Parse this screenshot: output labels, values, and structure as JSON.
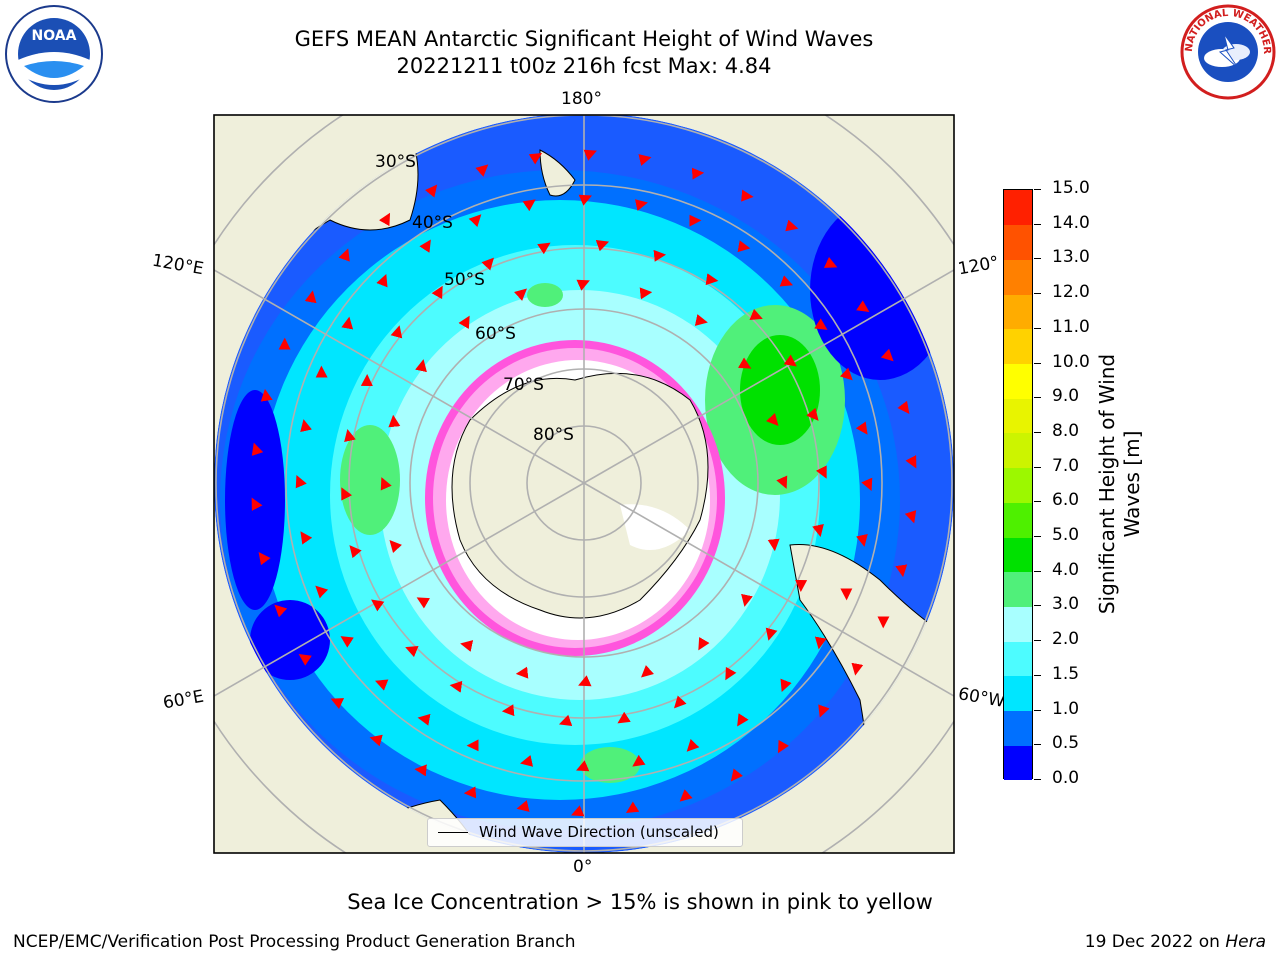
{
  "title_line1": "GEFS MEAN Antarctic Significant Height of Wind Waves",
  "title_line2": "20221211 t00z 216h fcst   Max: 4.84",
  "logos": {
    "left": "NOAA",
    "right": "NATIONAL WEATHER SERVICE"
  },
  "map_labels": {
    "lon": {
      "top": "180°",
      "bottom": "0°",
      "left_upper": "120°E",
      "left_lower": "60°E",
      "right_upper": "120°",
      "right_lower": "60°W"
    },
    "lat": [
      "30°S",
      "40°S",
      "50°S",
      "60°S",
      "70°S",
      "80°S"
    ]
  },
  "legend": {
    "label": "Wind Wave Direction (unscaled)"
  },
  "colorbar": {
    "label": "Significant Height of Wind Waves [m]",
    "ticks": [
      "0.0",
      "0.5",
      "1.0",
      "1.5",
      "2.0",
      "3.0",
      "4.0",
      "5.0",
      "6.0",
      "7.0",
      "8.0",
      "9.0",
      "10.0",
      "11.0",
      "12.0",
      "13.0",
      "14.0",
      "15.0"
    ],
    "colors": [
      "#0000ff",
      "#0070ff",
      "#00e6ff",
      "#4dfcff",
      "#a8ffff",
      "#50f07a",
      "#00e100",
      "#4ef000",
      "#9cf800",
      "#ccf400",
      "#e8f400",
      "#ffff00",
      "#ffd200",
      "#ffac00",
      "#ff8000",
      "#ff5200",
      "#ff2000"
    ]
  },
  "note": "Sea Ice Concentration > 15% is shown in pink to yellow",
  "footer": {
    "left": "NCEP/EMC/Verification Post Processing Product Generation Branch",
    "right_prefix": "19 Dec 2022 on ",
    "right_host": "Hera"
  }
}
